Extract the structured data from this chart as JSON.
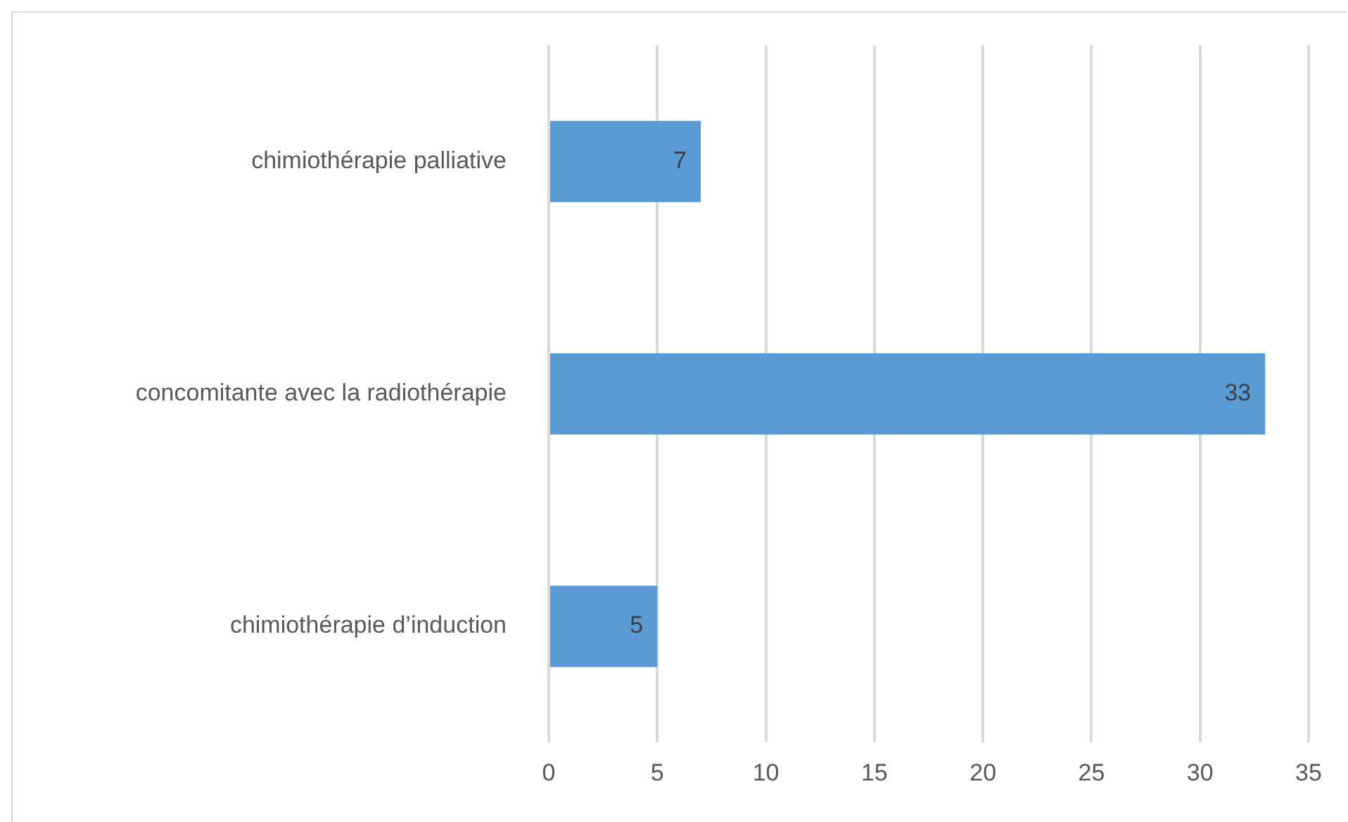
{
  "chart_data": {
    "type": "bar",
    "orientation": "horizontal",
    "categories": [
      "chimiothérapie palliative",
      "concomitante avec la radiothérapie",
      "chimiothérapie d’induction"
    ],
    "values": [
      7,
      33,
      5
    ],
    "color": "#5b9bd5",
    "xlim": [
      0,
      35
    ],
    "xticks": [
      0,
      5,
      10,
      15,
      20,
      25,
      30,
      35
    ],
    "grid": "x",
    "data_labels": true,
    "legend": false
  }
}
